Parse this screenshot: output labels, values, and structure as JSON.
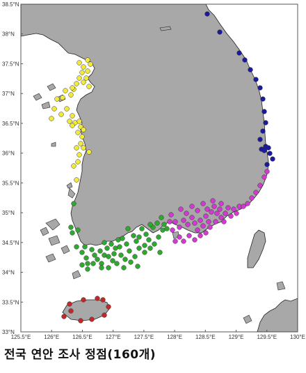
{
  "caption": "전국 연안 조사 정점(160개)",
  "map": {
    "lon_range": [
      125.5,
      130.0
    ],
    "lat_range": [
      33.0,
      38.5
    ],
    "lon_ticks": [
      "125.5°E",
      "126°E",
      "126.5°E",
      "127°E",
      "127.5°E",
      "128°E",
      "128.5°E",
      "129°E",
      "129.5°E",
      "130°E"
    ],
    "lat_ticks": [
      "38.5°N",
      "38°N",
      "37.5°N",
      "37°N",
      "36.5°N",
      "36°N",
      "35.5°N",
      "35°N",
      "34.5°N",
      "34°N",
      "33.5°N",
      "33°N"
    ],
    "colors": {
      "sea": "#ffffff",
      "land": "#a8a8a8",
      "coast": "#222222",
      "east_coast_stations": "#1a1aa0",
      "west_coast_stations": "#f2ea3a",
      "south_west_stations": "#2ea82e",
      "south_east_stations": "#d23ad2",
      "jeju_stations": "#c0282a"
    }
  }
}
